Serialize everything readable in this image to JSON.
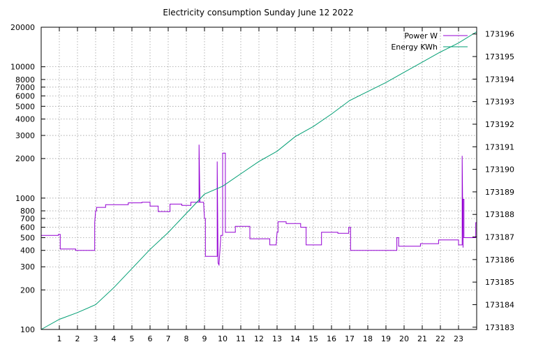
{
  "chart_data": {
    "type": "line",
    "title": "Electricity consumption Sunday June 12 2022",
    "xlabel": "",
    "ylabel": "",
    "y2label": "",
    "xlim": [
      0,
      24
    ],
    "ylim": [
      100,
      20000
    ],
    "y_scale": "log",
    "y2lim": [
      173182.9,
      173196.3
    ],
    "grid": true,
    "legend_position": "top-right",
    "x_ticks": [
      1,
      2,
      3,
      4,
      5,
      6,
      7,
      8,
      9,
      10,
      11,
      12,
      13,
      14,
      15,
      16,
      17,
      18,
      19,
      20,
      21,
      22,
      23
    ],
    "y_ticks": [
      100,
      200,
      300,
      400,
      500,
      600,
      700,
      800,
      1000,
      2000,
      3000,
      4000,
      5000,
      6000,
      7000,
      8000,
      10000,
      20000
    ],
    "y2_ticks": [
      173183,
      173184,
      173185,
      173186,
      173187,
      173188,
      173189,
      173190,
      173191,
      173192,
      173193,
      173194,
      173195,
      173196
    ],
    "colors": {
      "power": "#9400d3",
      "energy": "#009e73"
    },
    "series": [
      {
        "name": "Power W",
        "axis": "y",
        "x": [
          0,
          0.95,
          0.95,
          1.05,
          1.05,
          1.9,
          1.9,
          2.95,
          2.95,
          3.0,
          3.05,
          3.05,
          3.55,
          3.55,
          4.8,
          4.8,
          5.55,
          5.55,
          6.0,
          6.0,
          6.45,
          6.45,
          7.1,
          7.1,
          7.75,
          7.75,
          8.25,
          8.25,
          8.7,
          8.7,
          8.75,
          8.75,
          8.95,
          9.0,
          9.05,
          9.05,
          9.7,
          9.7,
          9.75,
          9.75,
          9.8,
          9.8,
          9.85,
          9.85,
          9.9,
          9.9,
          10.0,
          10.0,
          10.15,
          10.15,
          10.25,
          10.25,
          10.7,
          10.7,
          11.5,
          11.5,
          12.6,
          12.6,
          12.95,
          12.95,
          13.0,
          13.05,
          13.05,
          13.5,
          13.5,
          14.3,
          14.3,
          14.6,
          14.6,
          15.45,
          15.45,
          16.35,
          16.35,
          16.95,
          16.95,
          17.05,
          17.05,
          19.6,
          19.6,
          19.7,
          19.7,
          20.9,
          20.9,
          21.9,
          21.9,
          23.0,
          23.0,
          23.2,
          23.2,
          23.25,
          23.25,
          23.3,
          23.3,
          23.95,
          23.95,
          24.0
        ],
        "y": [
          520,
          520,
          530,
          530,
          410,
          410,
          400,
          400,
          650,
          800,
          800,
          850,
          850,
          890,
          890,
          920,
          920,
          930,
          930,
          870,
          870,
          790,
          790,
          900,
          900,
          880,
          880,
          930,
          930,
          2550,
          930,
          930,
          930,
          700,
          700,
          360,
          360,
          1900,
          320,
          320,
          310,
          310,
          400,
          400,
          520,
          520,
          520,
          2200,
          2200,
          550,
          550,
          550,
          550,
          610,
          610,
          490,
          490,
          440,
          440,
          440,
          550,
          550,
          660,
          660,
          640,
          640,
          600,
          600,
          440,
          440,
          550,
          550,
          540,
          540,
          600,
          600,
          400,
          400,
          500,
          500,
          430,
          430,
          450,
          450,
          480,
          480,
          440,
          440,
          2100,
          420,
          980,
          980,
          500,
          500,
          650,
          650
        ]
      },
      {
        "name": "Energy KWh",
        "axis": "y2",
        "x": [
          0,
          1,
          2,
          3,
          4,
          5,
          6,
          7,
          8,
          9,
          10,
          11,
          12,
          13,
          14,
          15,
          16,
          17,
          18,
          19,
          20,
          21,
          22,
          23,
          24
        ],
        "y": [
          173182.9,
          173183.35,
          173183.65,
          173184.0,
          173184.75,
          173185.6,
          173186.45,
          173187.2,
          173188.05,
          173188.9,
          173189.25,
          173189.8,
          173190.35,
          173190.8,
          173191.45,
          173191.9,
          173192.45,
          173193.05,
          173193.45,
          173193.85,
          173194.3,
          173194.75,
          173195.2,
          173195.6,
          173196.1
        ]
      }
    ]
  }
}
